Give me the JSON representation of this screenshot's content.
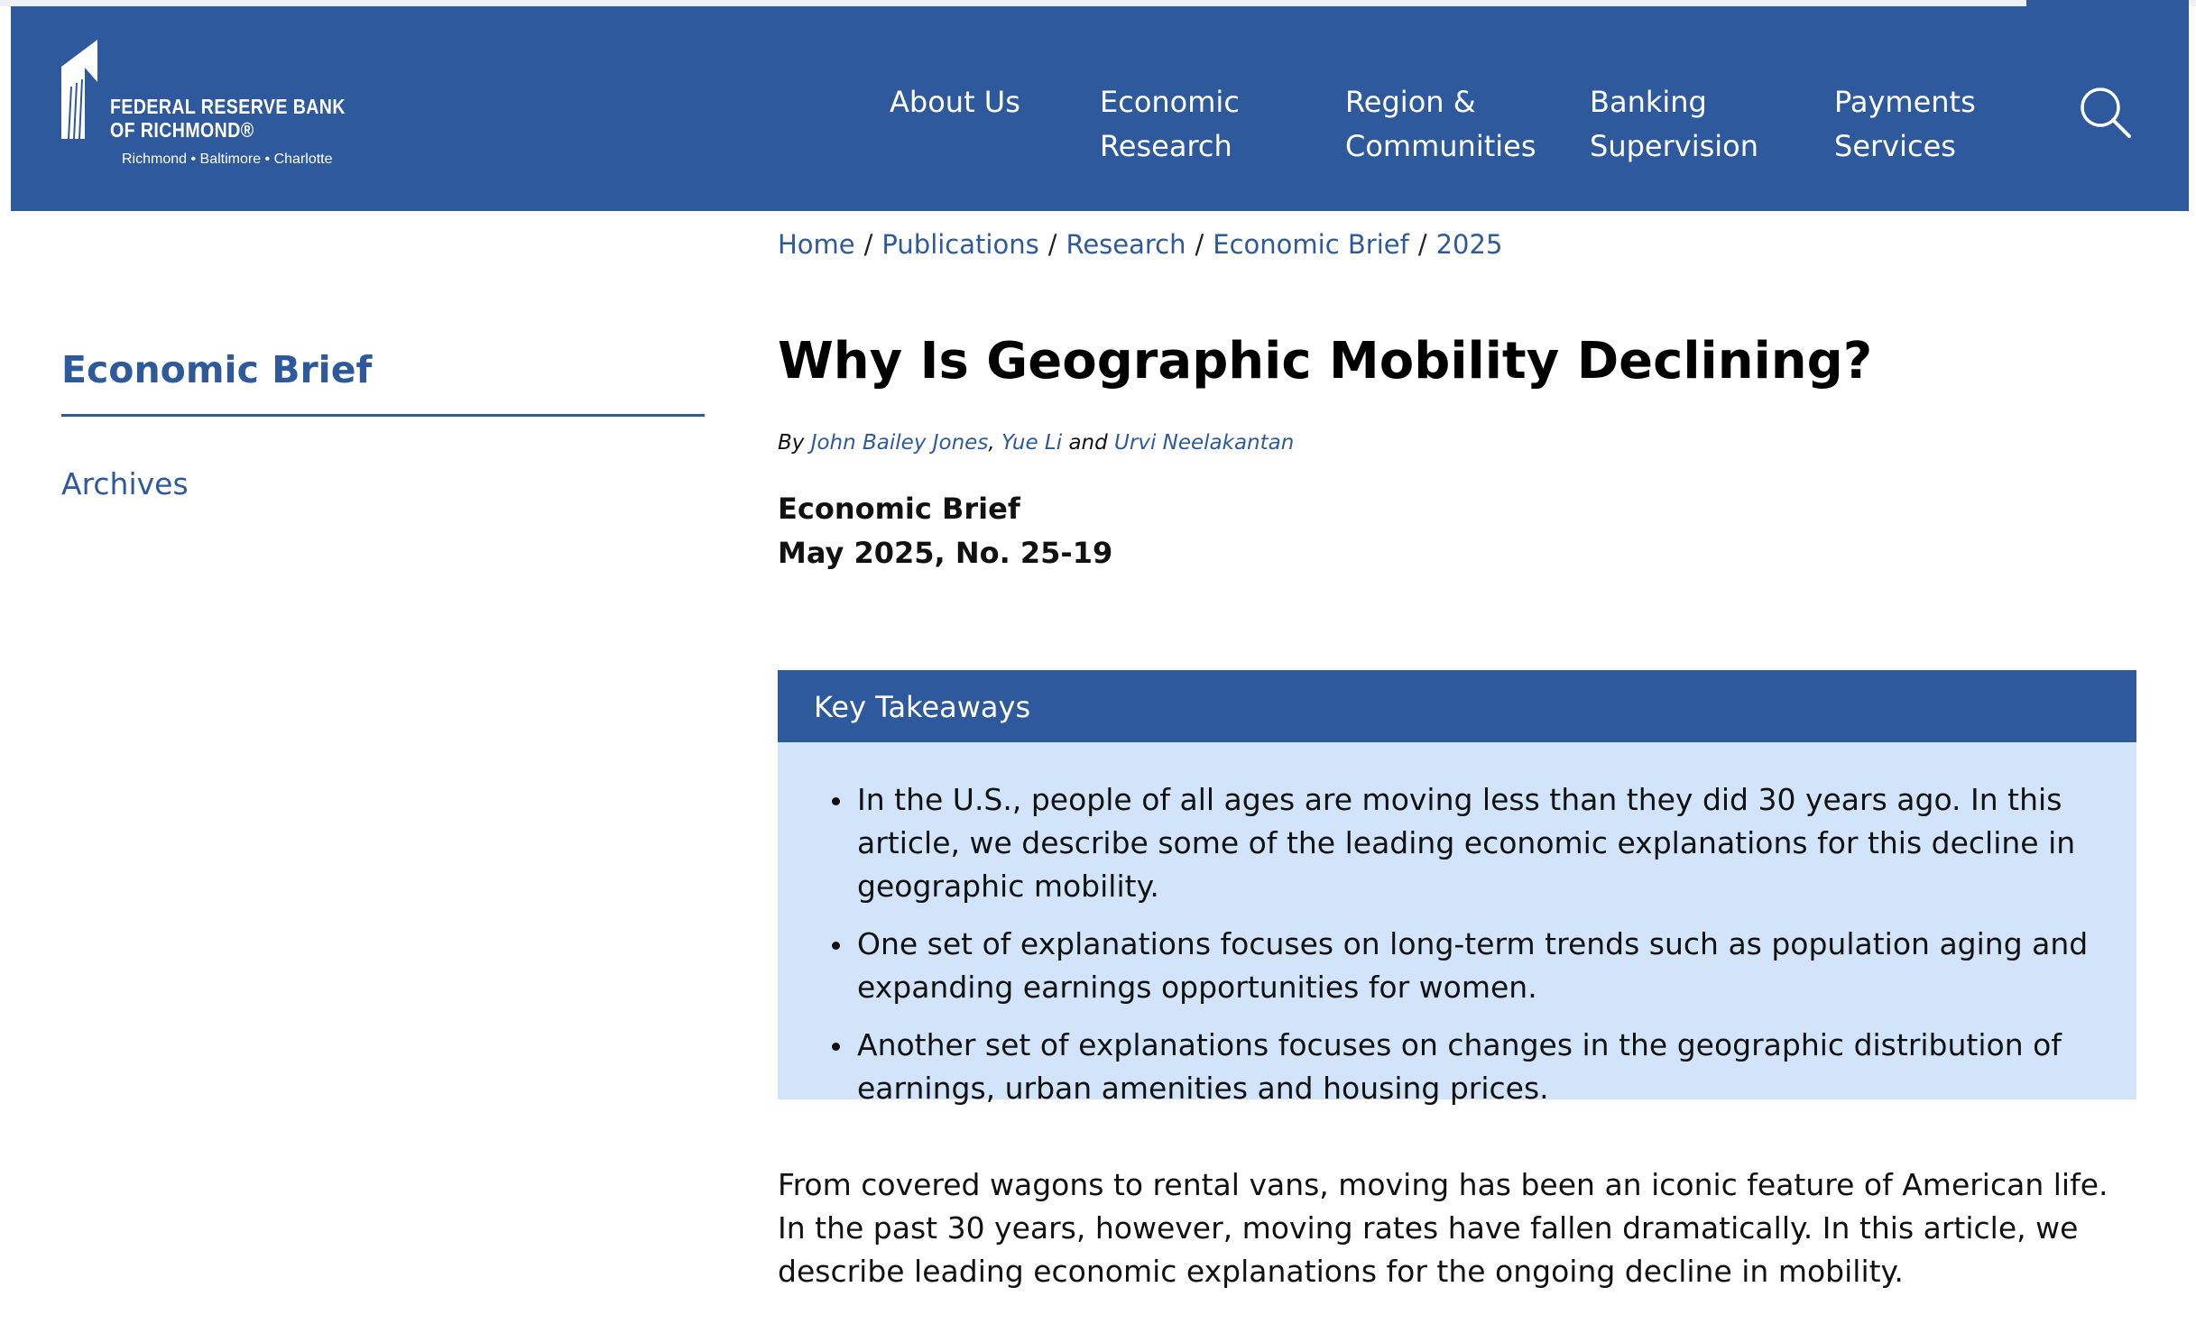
{
  "header": {
    "logo": {
      "line1": "FEDERAL RESERVE BANK",
      "line2": "OF RICHMOND®",
      "tagline": "Richmond • Baltimore • Charlotte"
    },
    "nav": [
      {
        "line1": "About Us",
        "line2": ""
      },
      {
        "line1": "Economic",
        "line2": "Research"
      },
      {
        "line1": "Region &",
        "line2": "Communities"
      },
      {
        "line1": "Banking",
        "line2": "Supervision"
      },
      {
        "line1": "Payments",
        "line2": "Services"
      }
    ],
    "search_icon": "search-icon"
  },
  "breadcrumb": [
    "Home",
    "Publications",
    "Research",
    "Economic Brief",
    "2025"
  ],
  "sidebar": {
    "title": "Economic Brief",
    "links": [
      "Archives"
    ]
  },
  "article": {
    "title": "Why Is Geographic Mobility Declining?",
    "byline": {
      "by": "By",
      "authors": [
        "John Bailey Jones",
        "Yue Li",
        "Urvi Neelakantan"
      ],
      "comma": ",",
      "and": "and"
    },
    "series": "Economic Brief",
    "issue": "May 2025, No. 25-19",
    "key_takeaways": {
      "heading": "Key Takeaways",
      "items": [
        "In the U.S., people of all ages are moving less than they did 30 years ago. In this article, we describe some of the leading economic explanations for this decline in geographic mobility.",
        "One set of explanations focuses on long-term trends such as population aging and expanding earnings opportunities for women.",
        "Another set of explanations focuses on changes in the geographic distribution of earnings, urban amenities and housing prices."
      ]
    },
    "intro": "From covered wagons to rental vans, moving has been an iconic feature of American life. In the past 30 years, however, moving rates have fallen dramatically. In this article, we describe leading economic explanations for the ongoing decline in mobility."
  },
  "colors": {
    "brand_blue": "#2e599d",
    "takeaways_bg": "#d2e4f9",
    "link": "#2e5a9c"
  }
}
